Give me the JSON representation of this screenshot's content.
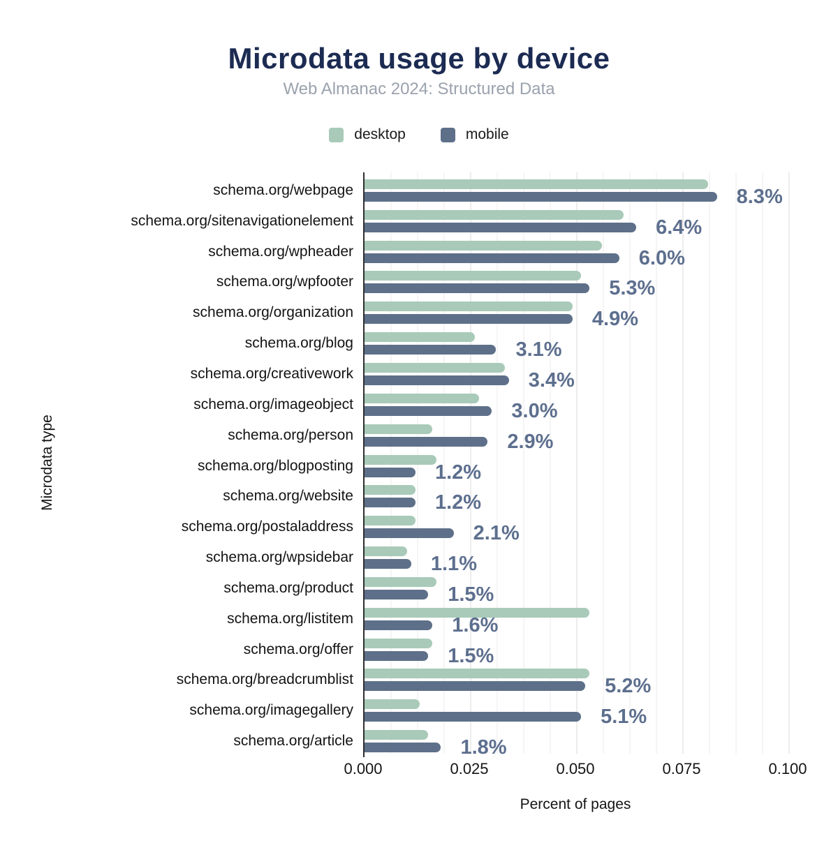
{
  "title": "Microdata usage by device",
  "subtitle": "Web Almanac 2024: Structured Data",
  "legend": {
    "desktop_label": "desktop",
    "mobile_label": "mobile"
  },
  "colors": {
    "desktop_bar": "#a9cab9",
    "mobile_bar": "#5e7089",
    "title_text": "#1c2b52",
    "subtitle_text": "#9aa2ad",
    "value_label_text": "#5d6f8e",
    "axis_line": "#2f2f2f"
  },
  "chart_data": {
    "type": "bar",
    "orientation": "horizontal",
    "title": "Microdata usage by device",
    "subtitle": "Web Almanac 2024: Structured Data",
    "xlabel": "Percent of pages",
    "ylabel": "Microdata type",
    "xlim": [
      0,
      0.1
    ],
    "x_ticks": [
      "0.000",
      "0.025",
      "0.050",
      "0.075",
      "0.100"
    ],
    "grid": "vertical-light",
    "legend_position": "top-center",
    "categories": [
      "schema.org/webpage",
      "schema.org/sitenavigationelement",
      "schema.org/wpheader",
      "schema.org/wpfooter",
      "schema.org/organization",
      "schema.org/blog",
      "schema.org/creativework",
      "schema.org/imageobject",
      "schema.org/person",
      "schema.org/blogposting",
      "schema.org/website",
      "schema.org/postaladdress",
      "schema.org/wpsidebar",
      "schema.org/product",
      "schema.org/listitem",
      "schema.org/offer",
      "schema.org/breadcrumblist",
      "schema.org/imagegallery",
      "schema.org/article"
    ],
    "series": [
      {
        "name": "desktop",
        "color": "#a9cab9",
        "values": [
          0.081,
          0.061,
          0.056,
          0.051,
          0.049,
          0.026,
          0.033,
          0.027,
          0.016,
          0.017,
          0.012,
          0.012,
          0.01,
          0.017,
          0.053,
          0.016,
          0.053,
          0.013,
          0.015
        ]
      },
      {
        "name": "mobile",
        "color": "#5e7089",
        "values": [
          0.083,
          0.064,
          0.06,
          0.053,
          0.049,
          0.031,
          0.034,
          0.03,
          0.029,
          0.012,
          0.012,
          0.021,
          0.011,
          0.015,
          0.016,
          0.015,
          0.052,
          0.051,
          0.018
        ]
      }
    ],
    "value_labels": [
      "8.3%",
      "6.4%",
      "6.0%",
      "5.3%",
      "4.9%",
      "3.1%",
      "3.4%",
      "3.0%",
      "2.9%",
      "1.2%",
      "1.2%",
      "2.1%",
      "1.1%",
      "1.5%",
      "1.6%",
      "1.5%",
      "5.2%",
      "5.1%",
      "1.8%"
    ]
  }
}
